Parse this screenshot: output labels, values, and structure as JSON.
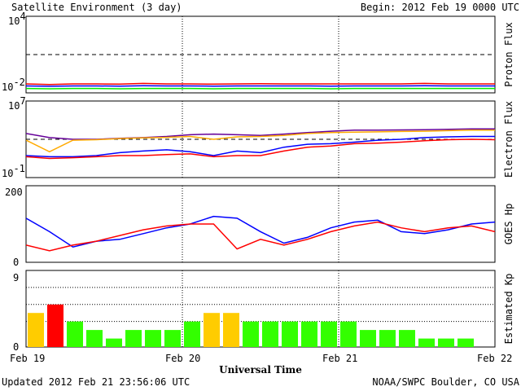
{
  "header": {
    "title": "Satellite Environment (3 day)",
    "begin": "Begin:  2012 Feb 19 0000 UTC"
  },
  "footer": {
    "updated": "Updated 2012 Feb 21 23:56:06 UTC",
    "credit": "NOAA/SWPC Boulder, CO USA"
  },
  "colors": {
    "red": "#ff0000",
    "blue": "#0000ff",
    "green": "#00ee00",
    "purple": "#660099",
    "orange": "#ffaa00",
    "kp_green": "#33ff00",
    "kp_yellow": "#ffcc00",
    "kp_red": "#ff0000"
  },
  "chart_data": [
    {
      "type": "line",
      "name": "proton-flux",
      "ylabel": "Proton Flux",
      "yscale": "log",
      "ylim": [
        0.01,
        10000
      ],
      "ytick_labels": [
        {
          "base": "10",
          "exp": "4"
        },
        {
          "base": "10",
          "exp": "-2"
        }
      ],
      "threshold": 10,
      "x_range_days": [
        0,
        3
      ],
      "series": [
        {
          "color": "red",
          "values": [
            0.05,
            0.045,
            0.05,
            0.05,
            0.048,
            0.055,
            0.05,
            0.05,
            0.048,
            0.05,
            0.052,
            0.05,
            0.05,
            0.05,
            0.05,
            0.05,
            0.05,
            0.055,
            0.05,
            0.05,
            0.05
          ]
        },
        {
          "color": "blue",
          "values": [
            0.035,
            0.033,
            0.035,
            0.035,
            0.034,
            0.036,
            0.035,
            0.035,
            0.034,
            0.035,
            0.035,
            0.035,
            0.035,
            0.034,
            0.035,
            0.035,
            0.035,
            0.036,
            0.035,
            0.035,
            0.035
          ]
        },
        {
          "color": "green",
          "values": [
            0.022,
            0.021,
            0.022,
            0.022,
            0.021,
            0.022,
            0.022,
            0.022,
            0.021,
            0.022,
            0.022,
            0.022,
            0.022,
            0.021,
            0.022,
            0.022,
            0.022,
            0.022,
            0.022,
            0.022,
            0.022
          ]
        }
      ]
    },
    {
      "type": "line",
      "name": "electron-flux",
      "ylabel": "Electron Flux",
      "yscale": "log",
      "ylim": [
        0.1,
        10000000
      ],
      "ytick_labels": [
        {
          "base": "10",
          "exp": "7"
        },
        {
          "base": "10",
          "exp": "-1"
        }
      ],
      "threshold": 1000,
      "x_range_days": [
        0,
        3
      ],
      "series": [
        {
          "color": "purple",
          "values": [
            4000,
            1500,
            1000,
            1000,
            1300,
            1500,
            2000,
            3000,
            3500,
            3000,
            2500,
            3500,
            5000,
            7000,
            9000,
            9000,
            9500,
            10000,
            11000,
            12000,
            12000
          ]
        },
        {
          "color": "orange",
          "values": [
            800,
            50,
            800,
            900,
            1200,
            1400,
            1600,
            2000,
            1000,
            1800,
            2000,
            2500,
            4000,
            5000,
            5500,
            6000,
            6500,
            7000,
            8000,
            9000,
            9000
          ]
        },
        {
          "color": "blue",
          "values": [
            20,
            15,
            15,
            20,
            40,
            60,
            80,
            50,
            20,
            60,
            40,
            150,
            300,
            350,
            500,
            800,
            1000,
            1500,
            1800,
            2000,
            2000
          ]
        },
        {
          "color": "red",
          "values": [
            15,
            10,
            12,
            15,
            20,
            20,
            25,
            30,
            15,
            20,
            20,
            60,
            150,
            200,
            350,
            400,
            500,
            700,
            900,
            1000,
            900
          ]
        }
      ]
    },
    {
      "type": "line",
      "name": "goes-hp",
      "ylabel": "GOES Hp",
      "yscale": "linear",
      "ylim": [
        0,
        200
      ],
      "ytick_labels": [
        "200",
        "0"
      ],
      "x_range_days": [
        0,
        3
      ],
      "series": [
        {
          "color": "blue",
          "values": [
            115,
            80,
            40,
            55,
            60,
            75,
            90,
            100,
            120,
            115,
            80,
            50,
            65,
            90,
            105,
            110,
            80,
            75,
            85,
            100,
            105
          ]
        },
        {
          "color": "red",
          "values": [
            45,
            30,
            45,
            55,
            70,
            85,
            95,
            100,
            100,
            35,
            60,
            45,
            60,
            80,
            95,
            105,
            90,
            80,
            90,
            95,
            80
          ]
        }
      ]
    },
    {
      "type": "bar",
      "name": "estimated-kp",
      "ylabel": "Estimated Kp",
      "ylim": [
        0,
        9
      ],
      "ytick_labels": [
        "9",
        "0"
      ],
      "values": [
        4,
        5,
        3,
        2,
        1,
        2,
        2,
        2,
        3,
        4,
        4,
        3,
        3,
        3,
        3,
        3,
        3,
        2,
        2,
        2,
        1,
        1,
        1
      ],
      "x_range_days": [
        0,
        3
      ],
      "bar_count_total": 24
    }
  ],
  "xaxis": {
    "label": "Universal Time",
    "ticks": [
      "Feb 19",
      "Feb 20",
      "Feb 21",
      "Feb 22"
    ]
  }
}
